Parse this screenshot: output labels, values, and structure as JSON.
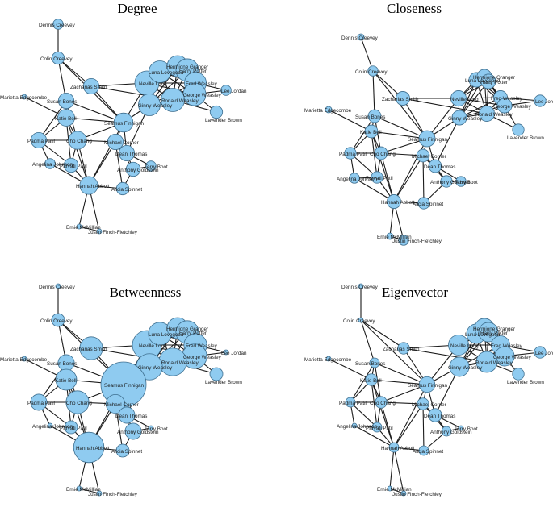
{
  "node_names": [
    "Dennis Creevey",
    "Colin Creevey",
    "Marietta Edgecombe",
    "Susan Bones",
    "Zacharias Smith",
    "Neville Longbottom",
    "Luna Lovegood",
    "Hermione Granger",
    "Harry Potter",
    "Fred Weasley",
    "George Weasley",
    "Lee Jordan",
    "Ronald Weasley",
    "Ginny Weasley",
    "Lavender Brown",
    "Katie Bell",
    "Seamus Finnigan",
    "Padma Patil",
    "Cho Chang",
    "Michael Corner",
    "Dean Thomas",
    "Angelina Johnson",
    "Parvati Patil",
    "Anthony Goldstein",
    "Terry Boot",
    "Hannah Abbott",
    "Alicia Spinnet",
    "Ernie McMillian",
    "Justin Finch-Fletchley"
  ],
  "node_labels": [
    "Dennis Creevey",
    "Colin Creevey",
    "Marietta Edgecombe",
    "Susan Bones",
    "Zacharias Smith",
    "Neville Long",
    "Luna Lovegood",
    "Hermione Granger",
    "Harry Potter",
    "Fred Weasley",
    "George Weasley",
    "Lee Jordan",
    "Ronald Weasley",
    "Ginny Weasley",
    "Lavender Brown",
    "Katie Bell",
    "Seamus Finnigan",
    "Padma Patil",
    "Cho Chang",
    "Michael Corner",
    "Dean Thomas",
    "Angelina Johnson",
    "Parvati Patil",
    "Anthony Goldstein",
    "Terry Boot",
    "Hannah Abbott",
    "Alicia Spinnet",
    "Ernie McMillian",
    "Justin Finch-Fletchley"
  ],
  "edges": [
    [
      0,
      1
    ],
    [
      1,
      3
    ],
    [
      1,
      4
    ],
    [
      2,
      15
    ],
    [
      3,
      15
    ],
    [
      3,
      16
    ],
    [
      3,
      17
    ],
    [
      3,
      18
    ],
    [
      4,
      5
    ],
    [
      4,
      16
    ],
    [
      4,
      12
    ],
    [
      5,
      6
    ],
    [
      5,
      7
    ],
    [
      5,
      8
    ],
    [
      5,
      9
    ],
    [
      5,
      10
    ],
    [
      5,
      12
    ],
    [
      5,
      13
    ],
    [
      5,
      16
    ],
    [
      6,
      7
    ],
    [
      6,
      8
    ],
    [
      6,
      9
    ],
    [
      6,
      10
    ],
    [
      6,
      12
    ],
    [
      6,
      13
    ],
    [
      7,
      8
    ],
    [
      7,
      9
    ],
    [
      7,
      10
    ],
    [
      7,
      12
    ],
    [
      7,
      13
    ],
    [
      8,
      9
    ],
    [
      8,
      10
    ],
    [
      8,
      12
    ],
    [
      8,
      13
    ],
    [
      9,
      10
    ],
    [
      9,
      11
    ],
    [
      9,
      12
    ],
    [
      9,
      13
    ],
    [
      10,
      11
    ],
    [
      10,
      12
    ],
    [
      10,
      13
    ],
    [
      10,
      14
    ],
    [
      12,
      13
    ],
    [
      12,
      14
    ],
    [
      13,
      16
    ],
    [
      13,
      20
    ],
    [
      15,
      16
    ],
    [
      15,
      17
    ],
    [
      15,
      18
    ],
    [
      15,
      25
    ],
    [
      15,
      22
    ],
    [
      16,
      18
    ],
    [
      16,
      19
    ],
    [
      16,
      20
    ],
    [
      16,
      25
    ],
    [
      16,
      1
    ],
    [
      17,
      18
    ],
    [
      17,
      21
    ],
    [
      17,
      22
    ],
    [
      18,
      19
    ],
    [
      18,
      22
    ],
    [
      18,
      25
    ],
    [
      19,
      20
    ],
    [
      19,
      23
    ],
    [
      19,
      26
    ],
    [
      20,
      23
    ],
    [
      20,
      24
    ],
    [
      23,
      24
    ],
    [
      23,
      26
    ],
    [
      21,
      22
    ],
    [
      21,
      25
    ],
    [
      22,
      25
    ],
    [
      25,
      26
    ],
    [
      25,
      27
    ],
    [
      25,
      28
    ],
    [
      25,
      19
    ],
    [
      27,
      28
    ]
  ],
  "panels": [
    {
      "title": "Degree",
      "node_values": [
        3,
        4,
        2,
        6,
        6,
        15,
        12,
        11,
        13,
        12,
        13,
        3,
        14,
        12,
        4,
        7,
        9,
        6,
        8,
        6,
        6,
        3,
        5,
        5,
        3,
        8,
        4,
        2,
        2
      ]
    },
    {
      "title": "Closeness",
      "node_values": [
        5,
        6,
        5,
        8,
        9,
        11,
        10,
        10,
        10,
        9,
        10,
        7,
        11,
        10,
        7,
        8,
        12,
        7,
        8,
        8,
        8,
        6,
        7,
        7,
        6,
        9,
        7,
        5,
        6
      ]
    },
    {
      "title": "Betweenness",
      "node_values": [
        1,
        2,
        1,
        3,
        6,
        10,
        6,
        5,
        6,
        6,
        7,
        1,
        9,
        8,
        2,
        5,
        26,
        3,
        6,
        4,
        3,
        1,
        2,
        3,
        1,
        11,
        2,
        1,
        1
      ]
    },
    {
      "title": "Eigenvector",
      "node_values": [
        1,
        1,
        1,
        2,
        3,
        11,
        10,
        10,
        10,
        9,
        10,
        3,
        12,
        10,
        3,
        3,
        6,
        2,
        3,
        3,
        4,
        1,
        2,
        2,
        1,
        2,
        2,
        1,
        1
      ]
    }
  ]
}
